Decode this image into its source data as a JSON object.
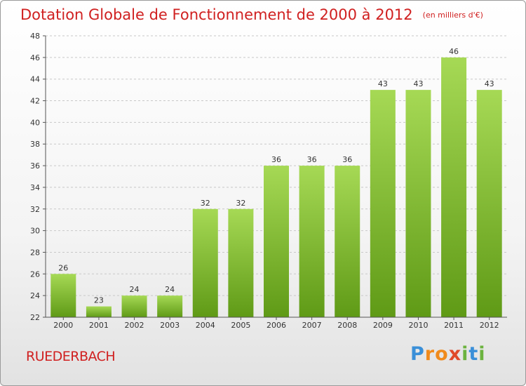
{
  "header": {
    "title": "Dotation Globale de Fonctionnement de 2000 à 2012",
    "unit": "(en milliers d'€)"
  },
  "commune": "RUEDERBACH",
  "logo": {
    "text": "Proxiti",
    "letters": [
      "P",
      "r",
      "o",
      "x",
      "i",
      "t",
      "i"
    ],
    "colors": [
      "#3a8fd8",
      "#f08a1c",
      "#f08a1c",
      "#e04a2a",
      "#6cb33f",
      "#3a8fd8",
      "#6cb33f"
    ]
  },
  "colors": {
    "title": "#d02020",
    "bar_top": "#a6d955",
    "bar_bottom": "#5f9a16",
    "grid": "#c8c8c8"
  },
  "chart_data": {
    "type": "bar",
    "title": "Dotation Globale de Fonctionnement de 2000 à 2012",
    "subtitle": "(en milliers d'€)",
    "categories": [
      "2000",
      "2001",
      "2002",
      "2003",
      "2004",
      "2005",
      "2006",
      "2007",
      "2008",
      "2009",
      "2010",
      "2011",
      "2012"
    ],
    "values": [
      26,
      23,
      24,
      24,
      32,
      32,
      36,
      36,
      36,
      43,
      43,
      46,
      43
    ],
    "ylim": [
      22,
      48
    ],
    "yticks": [
      22,
      24,
      26,
      28,
      30,
      32,
      34,
      36,
      38,
      40,
      42,
      44,
      46,
      48
    ],
    "grid": true,
    "data_labels": true
  }
}
